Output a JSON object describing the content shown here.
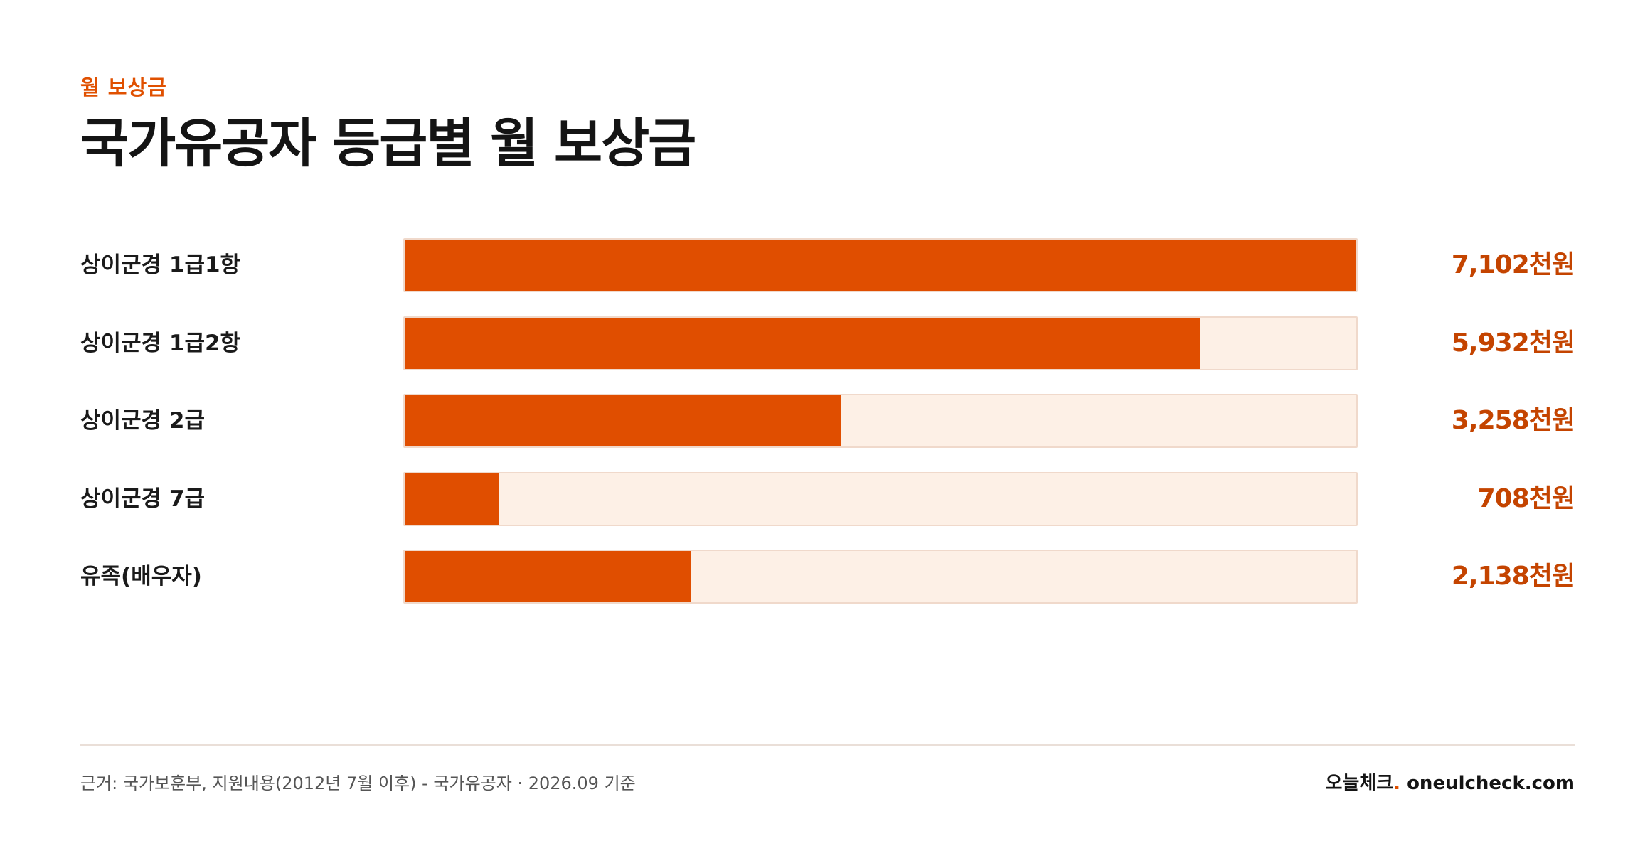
{
  "header": {
    "eyebrow": "월 보상금",
    "title": "국가유공자 등급별 월 보상금"
  },
  "colors": {
    "accent": "#e04e00",
    "value_text": "#c44400",
    "track": "#fdf0e6",
    "track_border": "#f0d9cb"
  },
  "chart_data": {
    "type": "bar",
    "orientation": "horizontal",
    "categories": [
      "상이군경 1급1항",
      "상이군경 1급2항",
      "상이군경 2급",
      "상이군경 7급",
      "유족(배우자)"
    ],
    "values": [
      7102,
      5932,
      3258,
      708,
      2138
    ],
    "value_labels": [
      "7,102천원",
      "5,932천원",
      "3,258천원",
      "708천원",
      "2,138천원"
    ],
    "unit": "천원",
    "xlim": [
      0,
      7102
    ],
    "grid": false
  },
  "footer": {
    "source": "근거: 국가보훈부, 지원내용(2012년 7월 이후) - 국가유공자 · 2026.09 기준",
    "brand_name": "오늘체크",
    "brand_dot": ".",
    "brand_domain": " oneulcheck.com"
  }
}
